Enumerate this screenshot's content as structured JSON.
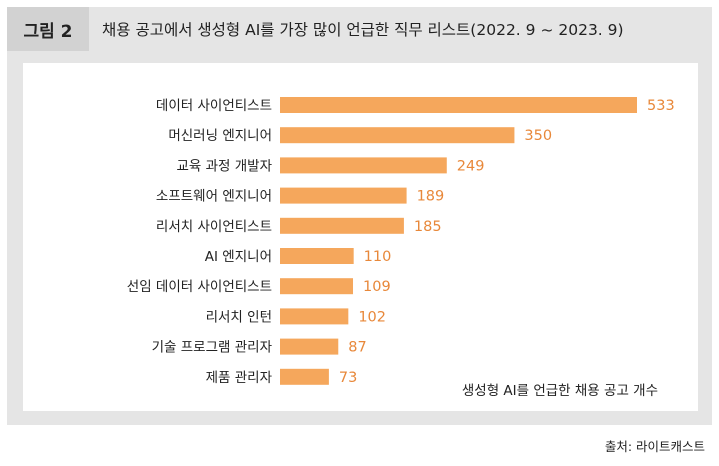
{
  "figure": {
    "label": "그림 2",
    "title": "채용 공고에서 생성형 AI를 가장 많이 언급한 직무 리스트(2022. 9 ~ 2023. 9)"
  },
  "chart_data": {
    "type": "bar",
    "orientation": "horizontal",
    "title": "채용 공고에서 생성형 AI를 가장 많이 언급한 직무 리스트(2022. 9 ~ 2023. 9)",
    "categories": [
      "데이터 사이언티스트",
      "머신러닝 엔지니어",
      "교육 과정 개발자",
      "소프트웨어 엔지니어",
      "리서치 사이언티스트",
      "AI 엔지니어",
      "선임 데이터 사이언티스트",
      "리서치 인턴",
      "기술 프로그램 관리자",
      "제품 관리자"
    ],
    "values": [
      533,
      350,
      249,
      189,
      185,
      110,
      109,
      102,
      87,
      73
    ],
    "series_name": "생성형 AI를 언급한 채용 공고 개수",
    "bar_color": "#f5a75c",
    "value_label_color": "#e8883a",
    "xlim": [
      0,
      533
    ],
    "grid": false
  },
  "legend_note": "생성형 AI를 언급한 채용 공고 개수",
  "source": "출처: 라이트캐스트"
}
